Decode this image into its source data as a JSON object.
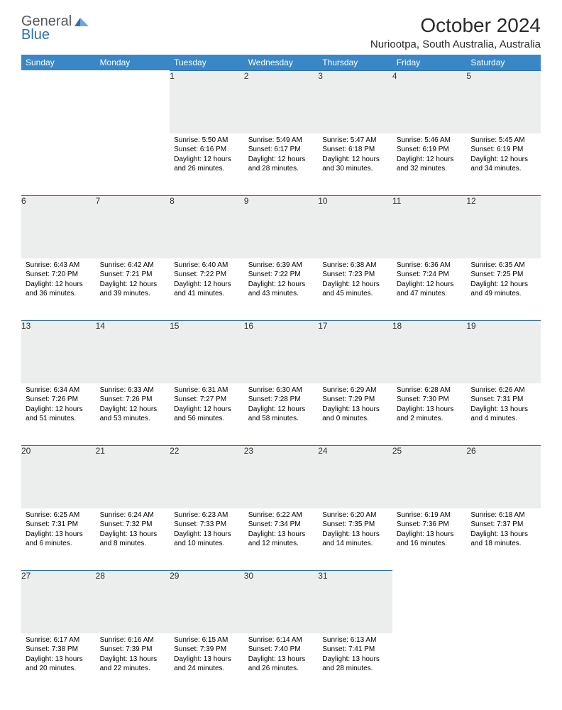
{
  "brand": {
    "general": "General",
    "blue": "Blue"
  },
  "title": "October 2024",
  "location": "Nuriootpa, South Australia, Australia",
  "colors": {
    "header_bg": "#3a87c8",
    "header_text": "#ffffff",
    "daynum_bg": "#eceded",
    "rule": "#2d6fb6",
    "brand_gray": "#555a5e",
    "brand_blue": "#2d6fb6",
    "page_bg": "#ffffff",
    "text": "#000000"
  },
  "typography": {
    "title_fontsize": 28,
    "location_fontsize": 15,
    "dayheader_fontsize": 12,
    "daynum_fontsize": 12,
    "cell_fontsize": 10
  },
  "day_headers": [
    "Sunday",
    "Monday",
    "Tuesday",
    "Wednesday",
    "Thursday",
    "Friday",
    "Saturday"
  ],
  "weeks": [
    [
      null,
      null,
      {
        "n": "1",
        "sunrise": "Sunrise: 5:50 AM",
        "sunset": "Sunset: 6:16 PM",
        "d1": "Daylight: 12 hours",
        "d2": "and 26 minutes."
      },
      {
        "n": "2",
        "sunrise": "Sunrise: 5:49 AM",
        "sunset": "Sunset: 6:17 PM",
        "d1": "Daylight: 12 hours",
        "d2": "and 28 minutes."
      },
      {
        "n": "3",
        "sunrise": "Sunrise: 5:47 AM",
        "sunset": "Sunset: 6:18 PM",
        "d1": "Daylight: 12 hours",
        "d2": "and 30 minutes."
      },
      {
        "n": "4",
        "sunrise": "Sunrise: 5:46 AM",
        "sunset": "Sunset: 6:19 PM",
        "d1": "Daylight: 12 hours",
        "d2": "and 32 minutes."
      },
      {
        "n": "5",
        "sunrise": "Sunrise: 5:45 AM",
        "sunset": "Sunset: 6:19 PM",
        "d1": "Daylight: 12 hours",
        "d2": "and 34 minutes."
      }
    ],
    [
      {
        "n": "6",
        "sunrise": "Sunrise: 6:43 AM",
        "sunset": "Sunset: 7:20 PM",
        "d1": "Daylight: 12 hours",
        "d2": "and 36 minutes."
      },
      {
        "n": "7",
        "sunrise": "Sunrise: 6:42 AM",
        "sunset": "Sunset: 7:21 PM",
        "d1": "Daylight: 12 hours",
        "d2": "and 39 minutes."
      },
      {
        "n": "8",
        "sunrise": "Sunrise: 6:40 AM",
        "sunset": "Sunset: 7:22 PM",
        "d1": "Daylight: 12 hours",
        "d2": "and 41 minutes."
      },
      {
        "n": "9",
        "sunrise": "Sunrise: 6:39 AM",
        "sunset": "Sunset: 7:22 PM",
        "d1": "Daylight: 12 hours",
        "d2": "and 43 minutes."
      },
      {
        "n": "10",
        "sunrise": "Sunrise: 6:38 AM",
        "sunset": "Sunset: 7:23 PM",
        "d1": "Daylight: 12 hours",
        "d2": "and 45 minutes."
      },
      {
        "n": "11",
        "sunrise": "Sunrise: 6:36 AM",
        "sunset": "Sunset: 7:24 PM",
        "d1": "Daylight: 12 hours",
        "d2": "and 47 minutes."
      },
      {
        "n": "12",
        "sunrise": "Sunrise: 6:35 AM",
        "sunset": "Sunset: 7:25 PM",
        "d1": "Daylight: 12 hours",
        "d2": "and 49 minutes."
      }
    ],
    [
      {
        "n": "13",
        "sunrise": "Sunrise: 6:34 AM",
        "sunset": "Sunset: 7:26 PM",
        "d1": "Daylight: 12 hours",
        "d2": "and 51 minutes."
      },
      {
        "n": "14",
        "sunrise": "Sunrise: 6:33 AM",
        "sunset": "Sunset: 7:26 PM",
        "d1": "Daylight: 12 hours",
        "d2": "and 53 minutes."
      },
      {
        "n": "15",
        "sunrise": "Sunrise: 6:31 AM",
        "sunset": "Sunset: 7:27 PM",
        "d1": "Daylight: 12 hours",
        "d2": "and 56 minutes."
      },
      {
        "n": "16",
        "sunrise": "Sunrise: 6:30 AM",
        "sunset": "Sunset: 7:28 PM",
        "d1": "Daylight: 12 hours",
        "d2": "and 58 minutes."
      },
      {
        "n": "17",
        "sunrise": "Sunrise: 6:29 AM",
        "sunset": "Sunset: 7:29 PM",
        "d1": "Daylight: 13 hours",
        "d2": "and 0 minutes."
      },
      {
        "n": "18",
        "sunrise": "Sunrise: 6:28 AM",
        "sunset": "Sunset: 7:30 PM",
        "d1": "Daylight: 13 hours",
        "d2": "and 2 minutes."
      },
      {
        "n": "19",
        "sunrise": "Sunrise: 6:26 AM",
        "sunset": "Sunset: 7:31 PM",
        "d1": "Daylight: 13 hours",
        "d2": "and 4 minutes."
      }
    ],
    [
      {
        "n": "20",
        "sunrise": "Sunrise: 6:25 AM",
        "sunset": "Sunset: 7:31 PM",
        "d1": "Daylight: 13 hours",
        "d2": "and 6 minutes."
      },
      {
        "n": "21",
        "sunrise": "Sunrise: 6:24 AM",
        "sunset": "Sunset: 7:32 PM",
        "d1": "Daylight: 13 hours",
        "d2": "and 8 minutes."
      },
      {
        "n": "22",
        "sunrise": "Sunrise: 6:23 AM",
        "sunset": "Sunset: 7:33 PM",
        "d1": "Daylight: 13 hours",
        "d2": "and 10 minutes."
      },
      {
        "n": "23",
        "sunrise": "Sunrise: 6:22 AM",
        "sunset": "Sunset: 7:34 PM",
        "d1": "Daylight: 13 hours",
        "d2": "and 12 minutes."
      },
      {
        "n": "24",
        "sunrise": "Sunrise: 6:20 AM",
        "sunset": "Sunset: 7:35 PM",
        "d1": "Daylight: 13 hours",
        "d2": "and 14 minutes."
      },
      {
        "n": "25",
        "sunrise": "Sunrise: 6:19 AM",
        "sunset": "Sunset: 7:36 PM",
        "d1": "Daylight: 13 hours",
        "d2": "and 16 minutes."
      },
      {
        "n": "26",
        "sunrise": "Sunrise: 6:18 AM",
        "sunset": "Sunset: 7:37 PM",
        "d1": "Daylight: 13 hours",
        "d2": "and 18 minutes."
      }
    ],
    [
      {
        "n": "27",
        "sunrise": "Sunrise: 6:17 AM",
        "sunset": "Sunset: 7:38 PM",
        "d1": "Daylight: 13 hours",
        "d2": "and 20 minutes."
      },
      {
        "n": "28",
        "sunrise": "Sunrise: 6:16 AM",
        "sunset": "Sunset: 7:39 PM",
        "d1": "Daylight: 13 hours",
        "d2": "and 22 minutes."
      },
      {
        "n": "29",
        "sunrise": "Sunrise: 6:15 AM",
        "sunset": "Sunset: 7:39 PM",
        "d1": "Daylight: 13 hours",
        "d2": "and 24 minutes."
      },
      {
        "n": "30",
        "sunrise": "Sunrise: 6:14 AM",
        "sunset": "Sunset: 7:40 PM",
        "d1": "Daylight: 13 hours",
        "d2": "and 26 minutes."
      },
      {
        "n": "31",
        "sunrise": "Sunrise: 6:13 AM",
        "sunset": "Sunset: 7:41 PM",
        "d1": "Daylight: 13 hours",
        "d2": "and 28 minutes."
      },
      null,
      null
    ]
  ]
}
